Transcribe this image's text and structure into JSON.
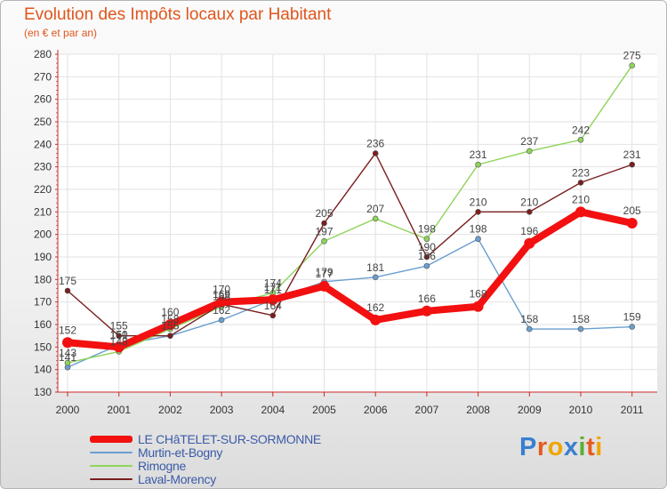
{
  "chart_data": {
    "type": "line",
    "title": "Evolution des Impôts locaux par Habitant",
    "subtitle": "(en € et par an)",
    "categories": [
      "2000",
      "2001",
      "2002",
      "2003",
      "2004",
      "2005",
      "2006",
      "2007",
      "2008",
      "2009",
      "2010",
      "2011"
    ],
    "ylim": [
      130,
      280
    ],
    "yticks": [
      130,
      140,
      150,
      160,
      170,
      180,
      190,
      200,
      210,
      220,
      230,
      240,
      250,
      260,
      270,
      280
    ],
    "grid": true,
    "series": [
      {
        "name": "LE CHâTELET-SUR-SORMONNE",
        "color": "#f21010",
        "emphasis": true,
        "values": [
          152,
          150,
          160,
          170,
          171,
          177,
          162,
          166,
          168,
          196,
          210,
          205
        ]
      },
      {
        "name": "Murtin-et-Bogny",
        "color": "#6a9fd0",
        "emphasis": false,
        "values": [
          141,
          151,
          155,
          162,
          171,
          179,
          181,
          186,
          198,
          158,
          158,
          159
        ]
      },
      {
        "name": "Rimogne",
        "color": "#8fd45a",
        "emphasis": false,
        "values": [
          143,
          148,
          158,
          168,
          174,
          197,
          207,
          198,
          231,
          237,
          242,
          275
        ]
      },
      {
        "name": "Laval-Morency",
        "color": "#7a1e1e",
        "emphasis": false,
        "values": [
          175,
          155,
          155,
          169,
          164,
          205,
          236,
          190,
          210,
          210,
          223,
          231
        ]
      }
    ]
  },
  "legend": {
    "items": [
      {
        "label": "LE CHâTELET-SUR-SORMONNE",
        "color": "#f21010"
      },
      {
        "label": "Murtin-et-Bogny",
        "color": "#6a9fd0"
      },
      {
        "label": "Rimogne",
        "color": "#8fd45a"
      },
      {
        "label": "Laval-Morency",
        "color": "#7a1e1e"
      }
    ]
  },
  "logo": {
    "text": "Proxiti",
    "letter_colors": [
      "#3a7fd0",
      "#e65a1e",
      "#f0a500",
      "#3a7fd0",
      "#58b030",
      "#e65a1e",
      "#f0a500"
    ]
  }
}
